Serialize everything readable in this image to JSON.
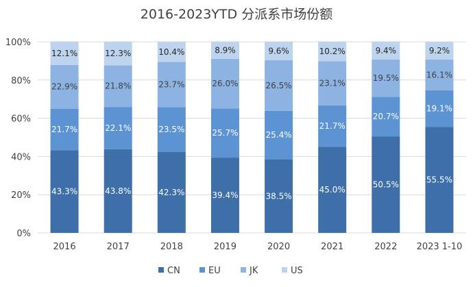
{
  "chart_data": {
    "type": "bar",
    "stacked": true,
    "title": "2016-2023YTD 分派系市场份额",
    "xlabel": "",
    "ylabel": "",
    "ylim": [
      0,
      100
    ],
    "yticks": [
      "0%",
      "20%",
      "40%",
      "60%",
      "80%",
      "100%"
    ],
    "categories": [
      "2016",
      "2017",
      "2018",
      "2019",
      "2020",
      "2021",
      "2022",
      "2023 1-10"
    ],
    "series": [
      {
        "name": "CN",
        "color": "#3e6fa8",
        "label_color": "#ffffff",
        "values": [
          43.3,
          43.8,
          42.3,
          39.4,
          38.5,
          45.0,
          50.5,
          55.5
        ],
        "labels": [
          "43.3%",
          "43.8%",
          "42.3%",
          "39.4%",
          "38.5%",
          "45.0%",
          "50.5%",
          "55.5%"
        ]
      },
      {
        "name": "EU",
        "color": "#5b93d3",
        "label_color": "#ffffff",
        "values": [
          21.7,
          22.1,
          23.5,
          25.7,
          25.4,
          21.7,
          20.7,
          19.1
        ],
        "labels": [
          "21.7%",
          "22.1%",
          "23.5%",
          "25.7%",
          "25.4%",
          "21.7%",
          "20.7%",
          "19.1%"
        ]
      },
      {
        "name": "JK",
        "color": "#8db3e2",
        "label_color": "#404040",
        "values": [
          22.9,
          21.8,
          23.7,
          26.0,
          26.5,
          23.1,
          19.5,
          16.1
        ],
        "labels": [
          "22.9%",
          "21.8%",
          "23.7%",
          "26.0%",
          "26.5%",
          "23.1%",
          "19.5%",
          "16.1%"
        ]
      },
      {
        "name": "US",
        "color": "#bdd3ee",
        "label_color": "#262626",
        "values": [
          12.1,
          12.3,
          10.4,
          8.9,
          9.6,
          10.2,
          9.4,
          9.2
        ],
        "labels": [
          "12.1%",
          "12.3%",
          "10.4%",
          "8.9%",
          "9.6%",
          "10.2%",
          "9.4%",
          "9.2%"
        ]
      }
    ],
    "grid": true,
    "legend": "bottom"
  }
}
